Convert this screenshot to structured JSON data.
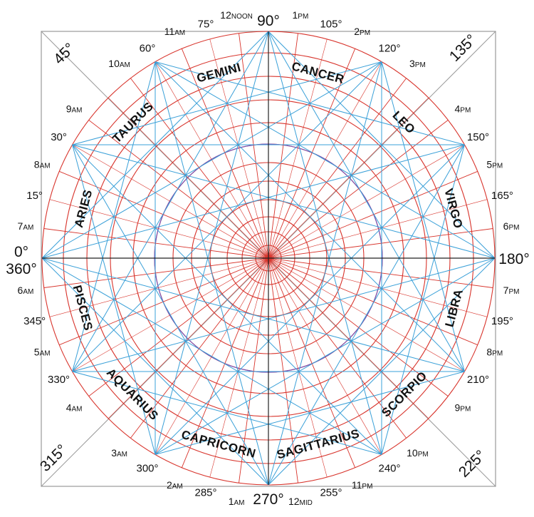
{
  "degree_labels": [
    {
      "deg": 0,
      "text": "0°"
    },
    {
      "deg": 15,
      "text": "15°"
    },
    {
      "deg": 30,
      "text": "30°"
    },
    {
      "deg": 45,
      "text": "45°"
    },
    {
      "deg": 60,
      "text": "60°"
    },
    {
      "deg": 75,
      "text": "75°"
    },
    {
      "deg": 90,
      "text": "90°"
    },
    {
      "deg": 105,
      "text": "105°"
    },
    {
      "deg": 120,
      "text": "120°"
    },
    {
      "deg": 135,
      "text": "135°"
    },
    {
      "deg": 150,
      "text": "150°"
    },
    {
      "deg": 165,
      "text": "165°"
    },
    {
      "deg": 180,
      "text": "180°"
    },
    {
      "deg": 195,
      "text": "195°"
    },
    {
      "deg": 210,
      "text": "210°"
    },
    {
      "deg": 225,
      "text": "225°"
    },
    {
      "deg": 240,
      "text": "240°"
    },
    {
      "deg": 255,
      "text": "255°"
    },
    {
      "deg": 270,
      "text": "270°"
    },
    {
      "deg": 285,
      "text": "285°"
    },
    {
      "deg": 300,
      "text": "300°"
    },
    {
      "deg": 315,
      "text": "315°"
    },
    {
      "deg": 330,
      "text": "330°"
    },
    {
      "deg": 345,
      "text": "345°"
    },
    {
      "deg": 360,
      "text": "360°"
    }
  ],
  "hour_labels": [
    {
      "deg": 7.5,
      "num": "7",
      "suffix": "AM"
    },
    {
      "deg": 22.5,
      "num": "8",
      "suffix": "AM"
    },
    {
      "deg": 37.5,
      "num": "9",
      "suffix": "AM"
    },
    {
      "deg": 52.5,
      "num": "10",
      "suffix": "AM"
    },
    {
      "deg": 67.5,
      "num": "11",
      "suffix": "AM"
    },
    {
      "deg": 82.5,
      "num": "12",
      "suffix": "NOON"
    },
    {
      "deg": 97.5,
      "num": "1",
      "suffix": "PM"
    },
    {
      "deg": 112.5,
      "num": "2",
      "suffix": "PM"
    },
    {
      "deg": 127.5,
      "num": "3",
      "suffix": "PM"
    },
    {
      "deg": 142.5,
      "num": "4",
      "suffix": "PM"
    },
    {
      "deg": 157.5,
      "num": "5",
      "suffix": "PM"
    },
    {
      "deg": 172.5,
      "num": "6",
      "suffix": "PM"
    },
    {
      "deg": 187.5,
      "num": "7",
      "suffix": "PM"
    },
    {
      "deg": 202.5,
      "num": "8",
      "suffix": "PM"
    },
    {
      "deg": 217.5,
      "num": "9",
      "suffix": "PM"
    },
    {
      "deg": 232.5,
      "num": "10",
      "suffix": "PM"
    },
    {
      "deg": 247.5,
      "num": "11",
      "suffix": "PM"
    },
    {
      "deg": 262.5,
      "num": "12",
      "suffix": "MID"
    },
    {
      "deg": 277.5,
      "num": "1",
      "suffix": "AM"
    },
    {
      "deg": 292.5,
      "num": "2",
      "suffix": "AM"
    },
    {
      "deg": 307.5,
      "num": "3",
      "suffix": "AM"
    },
    {
      "deg": 322.5,
      "num": "4",
      "suffix": "AM"
    },
    {
      "deg": 337.5,
      "num": "5",
      "suffix": "AM"
    },
    {
      "deg": 352.5,
      "num": "6",
      "suffix": "AM"
    }
  ],
  "zodiac_signs": [
    {
      "deg": 15,
      "name": "ARIES"
    },
    {
      "deg": 45,
      "name": "TAURUS"
    },
    {
      "deg": 75,
      "name": "GEMINI"
    },
    {
      "deg": 105,
      "name": "CANCER"
    },
    {
      "deg": 135,
      "name": "LEO"
    },
    {
      "deg": 165,
      "name": "VIRGO"
    },
    {
      "deg": 195,
      "name": "LIBRA"
    },
    {
      "deg": 225,
      "name": "SCORPIO"
    },
    {
      "deg": 255,
      "name": "SAGITTARIUS"
    },
    {
      "deg": 285,
      "name": "CAPRICORN"
    },
    {
      "deg": 315,
      "name": "AQUARIUS"
    },
    {
      "deg": 345,
      "name": "PISCES"
    }
  ],
  "colors": {
    "grid_red": "#d8342c",
    "construction_blue": "#3aa0d8",
    "frame_gray": "#9a9a9a",
    "axis_black": "#222222",
    "inner_circle_purple": "#7a52b0",
    "text": "#111111"
  }
}
